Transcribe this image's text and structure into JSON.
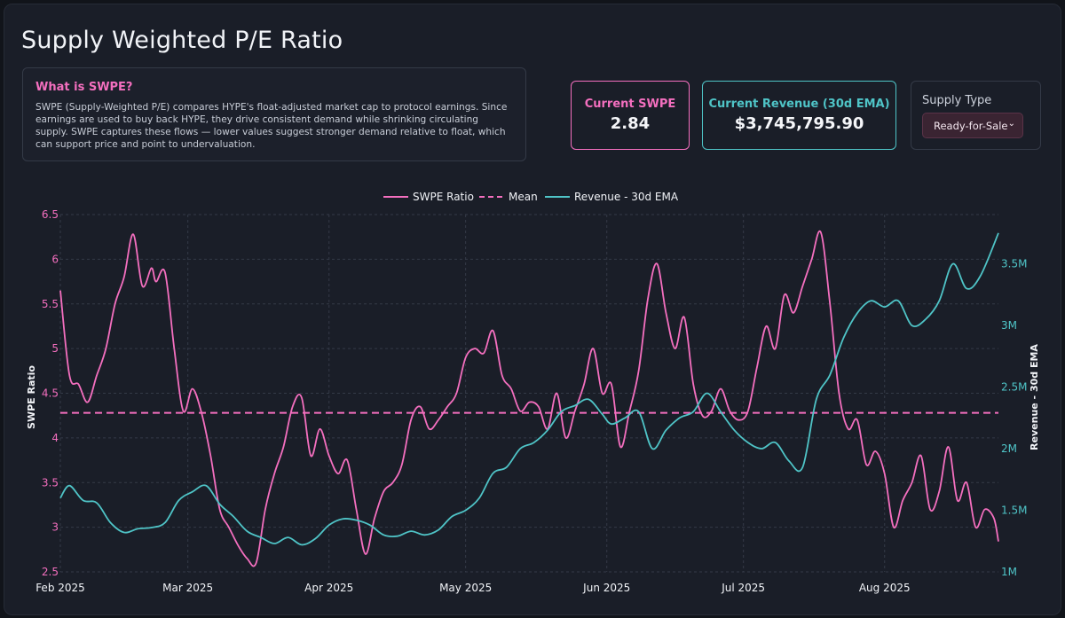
{
  "page": {
    "title": "Supply Weighted P/E Ratio"
  },
  "info": {
    "heading": "What is SWPE?",
    "body": "SWPE (Supply-Weighted P/E) compares HYPE's float-adjusted market cap to protocol earnings. Since earnings are used to buy back HYPE, they drive consistent demand while shrinking circulating supply. SWPE captures these flows — lower values suggest stronger demand relative to float, which can support price and point to undervaluation."
  },
  "cards": {
    "swpe_label": "Current SWPE",
    "swpe_value": "2.84",
    "revenue_label": "Current Revenue (30d EMA)",
    "revenue_value": "$3,745,795.90"
  },
  "supply": {
    "label": "Supply Type",
    "selected": "Ready-for-Sale"
  },
  "colors": {
    "swpe": "#f46fbf",
    "revenue": "#4fc4c7",
    "mean": "#f46fbf",
    "background": "#1a1e28"
  },
  "icons": {
    "select_chevron": "chevron-down-icon"
  },
  "chart_data": {
    "type": "line",
    "title": "",
    "ylabel": "SWPE Ratio",
    "y2label": "Revenue - 30d EMA",
    "ylim": [
      2.5,
      6.5
    ],
    "y2lim": [
      1000000,
      3900000
    ],
    "xlim": [
      "2025-02-01",
      "2025-08-26"
    ],
    "yticks": [
      "2.5",
      "3",
      "3.5",
      "4",
      "4.5",
      "5",
      "5.5",
      "6",
      "6.5"
    ],
    "y2ticks": [
      "1M",
      "1.5M",
      "2M",
      "2.5M",
      "3M",
      "3.5M"
    ],
    "xticks": [
      "Feb 2025",
      "Mar 2025",
      "Apr 2025",
      "May 2025",
      "Jun 2025",
      "Jul 2025",
      "Aug 2025"
    ],
    "legend": {
      "position": "top-center",
      "entries": [
        "SWPE Ratio",
        "Mean",
        "Revenue - 30d EMA"
      ]
    },
    "grid": true,
    "mean": 4.28,
    "series": [
      {
        "name": "SWPE Ratio",
        "axis": "left",
        "x": [
          "2025-02-01",
          "2025-02-03",
          "2025-02-05",
          "2025-02-07",
          "2025-02-09",
          "2025-02-11",
          "2025-02-13",
          "2025-02-15",
          "2025-02-17",
          "2025-02-19",
          "2025-02-21",
          "2025-02-22",
          "2025-02-24",
          "2025-02-26",
          "2025-02-28",
          "2025-03-02",
          "2025-03-04",
          "2025-03-06",
          "2025-03-08",
          "2025-03-10",
          "2025-03-12",
          "2025-03-14",
          "2025-03-16",
          "2025-03-18",
          "2025-03-20",
          "2025-03-22",
          "2025-03-24",
          "2025-03-26",
          "2025-03-28",
          "2025-03-30",
          "2025-04-01",
          "2025-04-03",
          "2025-04-05",
          "2025-04-07",
          "2025-04-09",
          "2025-04-11",
          "2025-04-13",
          "2025-04-15",
          "2025-04-17",
          "2025-04-19",
          "2025-04-21",
          "2025-04-23",
          "2025-04-25",
          "2025-04-27",
          "2025-04-29",
          "2025-05-01",
          "2025-05-03",
          "2025-05-05",
          "2025-05-07",
          "2025-05-09",
          "2025-05-11",
          "2025-05-13",
          "2025-05-15",
          "2025-05-17",
          "2025-05-19",
          "2025-05-21",
          "2025-05-23",
          "2025-05-25",
          "2025-05-27",
          "2025-05-29",
          "2025-05-31",
          "2025-06-02",
          "2025-06-04",
          "2025-06-06",
          "2025-06-08",
          "2025-06-10",
          "2025-06-12",
          "2025-06-14",
          "2025-06-16",
          "2025-06-18",
          "2025-06-20",
          "2025-06-22",
          "2025-06-24",
          "2025-06-26",
          "2025-06-28",
          "2025-06-30",
          "2025-07-02",
          "2025-07-04",
          "2025-07-06",
          "2025-07-08",
          "2025-07-10",
          "2025-07-12",
          "2025-07-14",
          "2025-07-16",
          "2025-07-18",
          "2025-07-20",
          "2025-07-22",
          "2025-07-24",
          "2025-07-26",
          "2025-07-28",
          "2025-07-30",
          "2025-08-01",
          "2025-08-03",
          "2025-08-05",
          "2025-08-07",
          "2025-08-09",
          "2025-08-11",
          "2025-08-13",
          "2025-08-15",
          "2025-08-17",
          "2025-08-19",
          "2025-08-21",
          "2025-08-23",
          "2025-08-25",
          "2025-08-26"
        ],
        "values": [
          5.65,
          4.7,
          4.6,
          4.4,
          4.7,
          5.0,
          5.5,
          5.8,
          6.28,
          5.7,
          5.9,
          5.75,
          5.85,
          5.0,
          4.3,
          4.55,
          4.28,
          3.8,
          3.2,
          3.0,
          2.8,
          2.65,
          2.6,
          3.2,
          3.6,
          3.9,
          4.35,
          4.45,
          3.8,
          4.1,
          3.8,
          3.6,
          3.75,
          3.2,
          2.7,
          3.1,
          3.4,
          3.5,
          3.7,
          4.2,
          4.35,
          4.1,
          4.2,
          4.35,
          4.5,
          4.9,
          5.0,
          4.95,
          5.2,
          4.7,
          4.55,
          4.3,
          4.4,
          4.35,
          4.1,
          4.5,
          4.0,
          4.3,
          4.6,
          5.0,
          4.5,
          4.6,
          3.9,
          4.3,
          4.75,
          5.55,
          5.95,
          5.4,
          5.0,
          5.35,
          4.6,
          4.25,
          4.3,
          4.55,
          4.3,
          4.2,
          4.3,
          4.8,
          5.25,
          5.0,
          5.6,
          5.4,
          5.7,
          6.0,
          6.3,
          5.5,
          4.5,
          4.1,
          4.2,
          3.7,
          3.85,
          3.6,
          3.0,
          3.3,
          3.5,
          3.8,
          3.2,
          3.4,
          3.9,
          3.3,
          3.5,
          3.0,
          3.2,
          3.1,
          2.84
        ]
      },
      {
        "name": "Revenue - 30d EMA",
        "axis": "right",
        "x": [
          "2025-02-01",
          "2025-02-03",
          "2025-02-06",
          "2025-02-09",
          "2025-02-12",
          "2025-02-15",
          "2025-02-18",
          "2025-02-21",
          "2025-02-24",
          "2025-02-27",
          "2025-03-02",
          "2025-03-05",
          "2025-03-08",
          "2025-03-11",
          "2025-03-14",
          "2025-03-17",
          "2025-03-20",
          "2025-03-23",
          "2025-03-26",
          "2025-03-29",
          "2025-04-01",
          "2025-04-04",
          "2025-04-07",
          "2025-04-10",
          "2025-04-13",
          "2025-04-16",
          "2025-04-19",
          "2025-04-22",
          "2025-04-25",
          "2025-04-28",
          "2025-05-01",
          "2025-05-04",
          "2025-05-07",
          "2025-05-10",
          "2025-05-13",
          "2025-05-16",
          "2025-05-19",
          "2025-05-22",
          "2025-05-25",
          "2025-05-28",
          "2025-05-31",
          "2025-06-02",
          "2025-06-05",
          "2025-06-08",
          "2025-06-11",
          "2025-06-14",
          "2025-06-17",
          "2025-06-20",
          "2025-06-23",
          "2025-06-26",
          "2025-06-29",
          "2025-07-02",
          "2025-07-05",
          "2025-07-08",
          "2025-07-11",
          "2025-07-14",
          "2025-07-17",
          "2025-07-20",
          "2025-07-23",
          "2025-07-26",
          "2025-07-29",
          "2025-08-01",
          "2025-08-04",
          "2025-08-07",
          "2025-08-10",
          "2025-08-13",
          "2025-08-16",
          "2025-08-19",
          "2025-08-22",
          "2025-08-26"
        ],
        "values": [
          1600000,
          1700000,
          1580000,
          1560000,
          1400000,
          1320000,
          1350000,
          1360000,
          1400000,
          1580000,
          1650000,
          1700000,
          1550000,
          1450000,
          1330000,
          1280000,
          1230000,
          1280000,
          1220000,
          1270000,
          1380000,
          1430000,
          1420000,
          1380000,
          1300000,
          1290000,
          1330000,
          1300000,
          1340000,
          1450000,
          1500000,
          1600000,
          1800000,
          1850000,
          2000000,
          2050000,
          2150000,
          2300000,
          2350000,
          2400000,
          2280000,
          2200000,
          2250000,
          2300000,
          2000000,
          2150000,
          2250000,
          2300000,
          2450000,
          2300000,
          2150000,
          2050000,
          2000000,
          2050000,
          1900000,
          1850000,
          2400000,
          2600000,
          2900000,
          3100000,
          3200000,
          3150000,
          3200000,
          3000000,
          3050000,
          3200000,
          3500000,
          3300000,
          3400000,
          3750000
        ]
      }
    ]
  }
}
